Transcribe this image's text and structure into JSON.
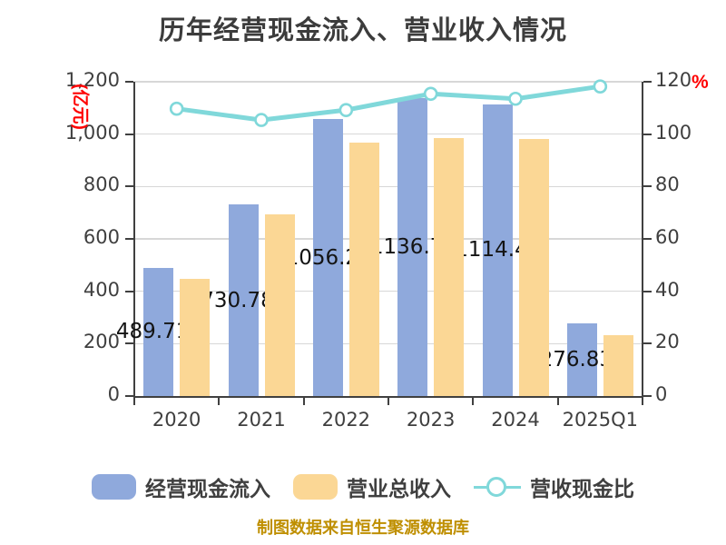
{
  "title": "历年经营现金流入、营业收入情况",
  "footer": "制图数据来自恒生聚源数据库",
  "accent_colors": {
    "axis_unit_red": "#FF0000",
    "footer_gold": "#BF8F00",
    "cash_inflow_blue": "#8FA9DC",
    "revenue_yellow": "#FBD795",
    "ratio_teal": "#80D8DA"
  },
  "left_axis": {
    "unit_label": "(亿元)",
    "ticks": [
      {
        "label": "1,200",
        "value": 1200
      },
      {
        "label": "1,000",
        "value": 1000
      },
      {
        "label": "800",
        "value": 800
      },
      {
        "label": "600",
        "value": 600
      },
      {
        "label": "400",
        "value": 400
      },
      {
        "label": "200",
        "value": 200
      },
      {
        "label": "0",
        "value": 0
      }
    ]
  },
  "right_axis": {
    "unit_label": "%",
    "ticks": [
      {
        "label": "120",
        "value": 120
      },
      {
        "label": "100",
        "value": 100
      },
      {
        "label": "80",
        "value": 80
      },
      {
        "label": "60",
        "value": 60
      },
      {
        "label": "40",
        "value": 40
      },
      {
        "label": "20",
        "value": 20
      },
      {
        "label": "0",
        "value": 0
      }
    ]
  },
  "legend": {
    "items": [
      {
        "label": "经营现金流入",
        "color": "#8FA9DC",
        "marker": "bar"
      },
      {
        "label": "营业总收入",
        "color": "#FBD795",
        "marker": "bar"
      },
      {
        "label": "营收现金比",
        "color": "#80D8DA",
        "marker": "line-circle"
      }
    ]
  },
  "chart_data": {
    "type": "bar",
    "subtype": "grouped-bars-with-line-overlay",
    "categories": [
      "2020",
      "2021",
      "2022",
      "2023",
      "2024",
      "2025Q1"
    ],
    "series": [
      {
        "name": "经营现金流入",
        "type": "bar",
        "y_axis": "left",
        "unit": "亿元",
        "color": "#8FA9DC",
        "values": [
          489.71,
          730.78,
          1056.2,
          1136.7,
          1114.4,
          276.83
        ],
        "data_labels": [
          "489.71",
          "730.78",
          "1056.2",
          "1136.7",
          "1114.4",
          "276.83"
        ]
      },
      {
        "name": "营业总收入",
        "type": "bar",
        "y_axis": "left",
        "unit": "亿元",
        "color": "#FBD795",
        "values": [
          446,
          693,
          967,
          985,
          982,
          234
        ]
      },
      {
        "name": "营收现金比",
        "type": "line",
        "y_axis": "right",
        "unit": "%",
        "color": "#80D8DA",
        "values": [
          109.7,
          105.4,
          109.2,
          115.4,
          113.5,
          118.2
        ]
      }
    ],
    "ylim_left": [
      0,
      1200
    ],
    "ylim_right": [
      0,
      120
    ],
    "grid": true,
    "legend_position": "bottom"
  }
}
